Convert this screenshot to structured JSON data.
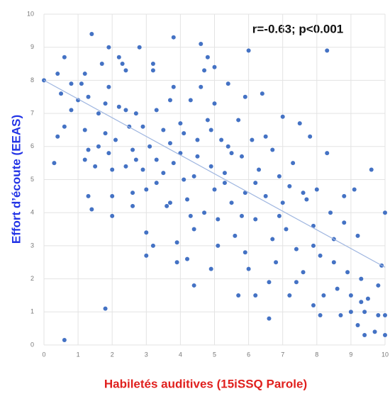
{
  "chart_data": {
    "type": "scatter",
    "annotation": "r=-0.63; p<0.001",
    "xlabel": "Habiletés auditives (15iSSQ Parole)",
    "ylabel": "Effort d’écoute (EEAS)",
    "color": "#4472c4",
    "x": [
      0.6,
      1.8,
      0.3,
      0,
      0.4,
      0.5,
      0.6,
      0.8,
      0.4,
      0.6,
      0.8,
      1,
      1.1,
      1.2,
      1.4,
      1.3,
      1.2,
      1.3,
      1.2,
      1.3,
      1.4,
      1.5,
      1.6,
      1.7,
      1.8,
      1.9,
      1.8,
      1.9,
      2,
      2,
      2,
      2.1,
      2.2,
      2.3,
      2.2,
      2.4,
      2.4,
      2.5,
      2.6,
      2.7,
      2.6,
      2.6,
      2.8,
      2.9,
      2.9,
      3,
      3,
      3,
      3.2,
      3.2,
      3.2,
      3.3,
      3.1,
      3.3,
      3.5,
      3.6,
      3.7,
      3.7,
      3.8,
      3.8,
      3.9,
      3.9,
      3.8,
      4,
      4,
      4.1,
      4.2,
      4.3,
      4.3,
      4.4,
      4.5,
      4.5,
      4.6,
      4.6,
      4.7,
      4.7,
      4.8,
      4.9,
      4.9,
      5,
      5,
      5,
      5.1,
      5.2,
      4.4,
      5.3,
      5.4,
      5.4,
      5.5,
      5.6,
      5.7,
      5.7,
      5.8,
      5.9,
      5.9,
      6,
      6,
      6.1,
      6.2,
      6.2,
      6.3,
      6.4,
      6.5,
      6.6,
      6.6,
      6.7,
      6.8,
      7,
      7,
      7.1,
      7.2,
      7.3,
      7.4,
      7.5,
      7.6,
      7.6,
      7.8,
      7.9,
      7.9,
      8,
      8.1,
      8.2,
      8.3,
      8.3,
      8.4,
      8.5,
      8.6,
      8.7,
      8.8,
      8.9,
      9,
      9,
      9.1,
      9.2,
      9.2,
      9.3,
      9.4,
      9.5,
      9.6,
      9.7,
      9.8,
      9.8,
      9.9,
      10,
      10,
      10,
      9.4,
      8.5,
      7.7,
      6.9,
      5.3,
      4.4,
      3.5,
      2.7,
      1.6,
      1.9,
      6.5,
      7.2,
      5.8,
      6.9,
      4.8,
      4.1,
      3.3,
      5.5,
      6.2,
      7.9,
      8.8,
      9.3,
      4.2,
      5.1,
      3.7,
      2.4,
      6.7,
      7.4,
      8.1,
      5.9,
      4.9
    ],
    "values": [
      0.15,
      1.1,
      5.5,
      8,
      8.2,
      7.6,
      8.7,
      7.9,
      6.3,
      6.6,
      7.1,
      7.4,
      7.9,
      8.2,
      9.4,
      7.5,
      6.5,
      5.9,
      5.6,
      4.5,
      4.1,
      5.4,
      7,
      8.5,
      7.3,
      9,
      6.4,
      5.8,
      5.3,
      4.5,
      3.9,
      6.2,
      8.7,
      8.5,
      7.2,
      7.1,
      8.3,
      6.6,
      5.9,
      5.6,
      4.6,
      4.2,
      9,
      6.6,
      5.3,
      4.7,
      3.4,
      2.7,
      3,
      8.3,
      8.5,
      7.1,
      6,
      5.6,
      5.2,
      4.2,
      7.4,
      6.1,
      7.8,
      5.5,
      3.1,
      2.5,
      9.3,
      6.7,
      5.8,
      5,
      4.4,
      7.4,
      3.9,
      3.5,
      5.7,
      6.2,
      7.8,
      9.1,
      8.3,
      4,
      8.7,
      5.4,
      6.5,
      8.4,
      7.3,
      4.7,
      3,
      6.2,
      1.8,
      5.2,
      6,
      7.9,
      4.3,
      3.3,
      6.8,
      1.5,
      5.7,
      7.5,
      4.6,
      8.9,
      2.3,
      6.2,
      1.5,
      3.8,
      5.3,
      7.6,
      4.5,
      1.9,
      0.8,
      5.9,
      2.5,
      6.9,
      4.3,
      3.5,
      1.5,
      5.5,
      2.9,
      6.7,
      4.6,
      2.2,
      6.3,
      3.6,
      1.2,
      4.7,
      2.7,
      1.5,
      8.9,
      5.8,
      4,
      3.2,
      1.7,
      0.9,
      4.5,
      2.2,
      1.5,
      1,
      4.7,
      3.3,
      0.6,
      2,
      1,
      1.4,
      5.3,
      0.4,
      1.8,
      0.9,
      2.4,
      0.9,
      4,
      0.3,
      0.3,
      2.5,
      4.4,
      3.9,
      4.9,
      5.1,
      6.5,
      7,
      6,
      7.8,
      6.3,
      4.8,
      3.9,
      5.1,
      6.8,
      6.4,
      4.9,
      5.8,
      4.9,
      3,
      3.7,
      1.3,
      2.6,
      3.8,
      4.3,
      5.4,
      3.2,
      1.9,
      0.9,
      2.8,
      2.3
    ],
    "trendline": {
      "x": [
        0,
        10
      ],
      "values": [
        8,
        2.35
      ],
      "color": "#9fb6e0"
    },
    "xlim": [
      0,
      10
    ],
    "ylim": [
      0,
      10
    ],
    "xticks": [
      0,
      1,
      2,
      3,
      4,
      5,
      6,
      7,
      8,
      9,
      10
    ],
    "yticks": [
      0,
      1,
      2,
      3,
      4,
      5,
      6,
      7,
      8,
      9,
      10
    ],
    "grid": true
  }
}
